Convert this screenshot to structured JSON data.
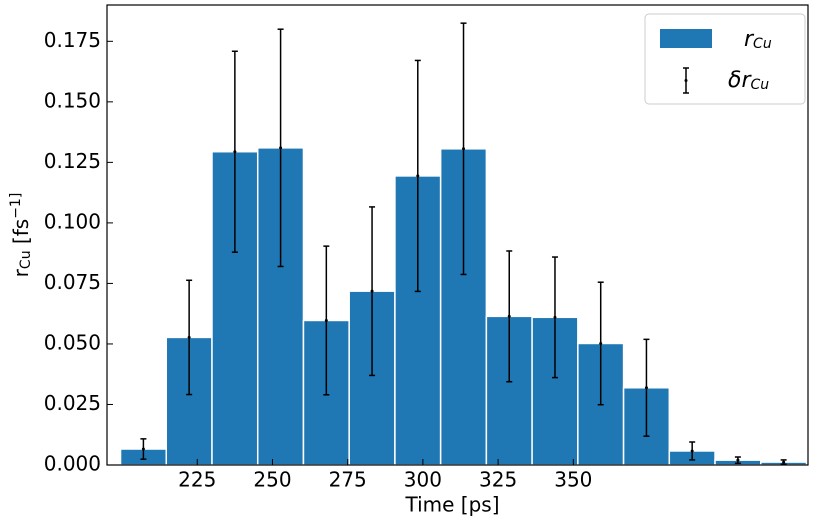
{
  "chart_data": {
    "type": "histogram",
    "xlabel": "Time [ps]",
    "ylabel": "r_Cu [fs^−1]",
    "bins": [
      199.5,
      214.7,
      229.9,
      245.1,
      260.3,
      275.5,
      290.7,
      305.9,
      321.1,
      336.3,
      351.5,
      366.7,
      381.9,
      397.1,
      412.3,
      427.5
    ],
    "series": [
      {
        "name": "r_Cu",
        "color": "#1f77b4",
        "values": [
          0.0066,
          0.0527,
          0.1294,
          0.131,
          0.0597,
          0.0718,
          0.1194,
          0.1306,
          0.0614,
          0.061,
          0.0502,
          0.0319,
          0.0058,
          0.002,
          0.0012
        ]
      }
    ],
    "errors": {
      "name": "δr_Cu",
      "color": "#000000",
      "values": [
        0.0042,
        0.0236,
        0.0415,
        0.049,
        0.0307,
        0.0348,
        0.0477,
        0.0519,
        0.027,
        0.0249,
        0.0253,
        0.02,
        0.0037,
        0.0013,
        0.0009
      ]
    },
    "xlim": [
      195,
      428
    ],
    "xticks": [
      225,
      250,
      275,
      300,
      325,
      350
    ],
    "ylim": [
      0,
      0.19
    ],
    "yticks": [
      {
        "value": 0,
        "label": "0.000"
      },
      {
        "value": 0.025,
        "label": "0.025"
      },
      {
        "value": 0.05,
        "label": "0.050"
      },
      {
        "value": 0.075,
        "label": "0.075"
      },
      {
        "value": 0.1,
        "label": "0.100"
      },
      {
        "value": 0.125,
        "label": "0.125"
      },
      {
        "value": 0.15,
        "label": "0.150"
      },
      {
        "value": 0.175,
        "label": "0.175"
      }
    ],
    "legend": "upper right"
  }
}
